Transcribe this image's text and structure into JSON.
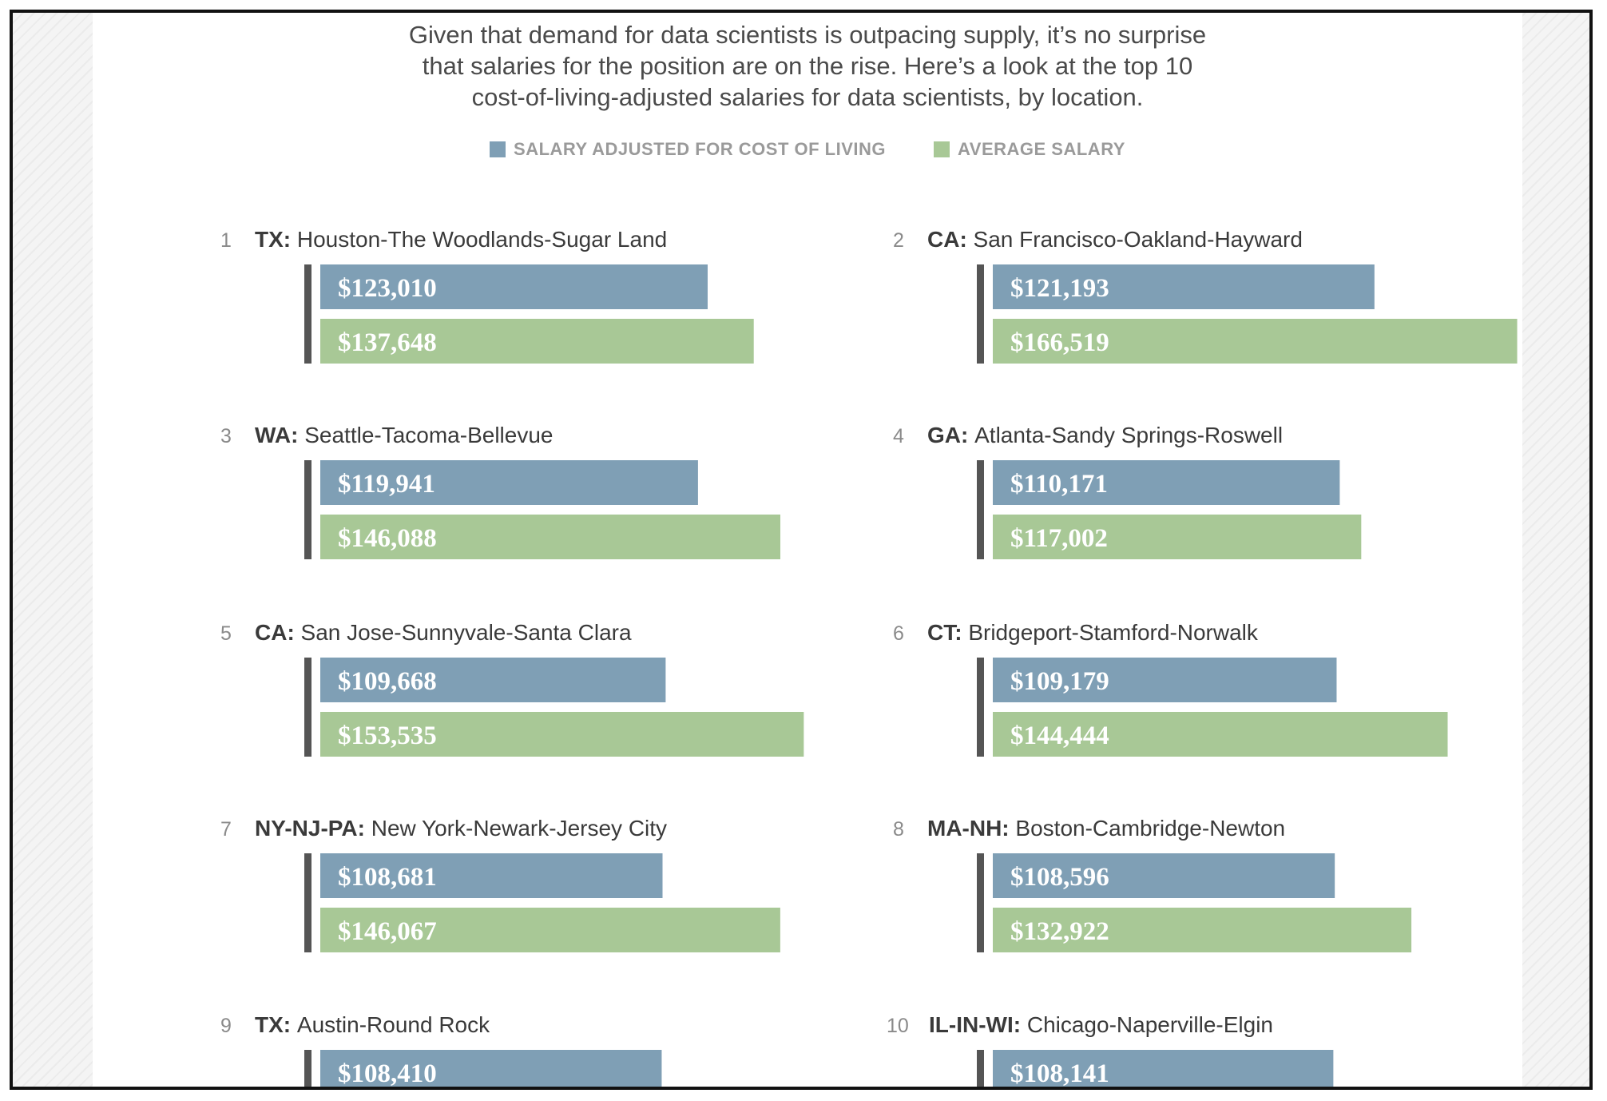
{
  "intro": {
    "line1": "Given that demand for data scientists is outpacing supply, it’s no surprise",
    "line2": "that salaries for the position are on the rise. Here’s a look at the top 10",
    "line3": "cost-of-living-adjusted salaries for data scientists, by location."
  },
  "colors": {
    "adjusted": "#7f9fb5",
    "average": "#a8c896",
    "accent": "#555555"
  },
  "chart_data": {
    "type": "bar",
    "orientation": "horizontal",
    "legend": {
      "adjusted": "SALARY ADJUSTED FOR COST OF LIVING",
      "average": "AVERAGE SALARY",
      "position": "top-center"
    },
    "series": [
      {
        "name": "SALARY ADJUSTED FOR COST OF LIVING",
        "key": "adjusted"
      },
      {
        "name": "AVERAGE SALARY",
        "key": "average"
      }
    ],
    "xlim": [
      0,
      200000
    ],
    "locations": [
      {
        "rank": "1",
        "state": "TX:",
        "metro": "Houston-The Woodlands-Sugar Land",
        "adjusted": 123010,
        "adjusted_label": "$123,010",
        "average": 137648,
        "average_label": "$137,648"
      },
      {
        "rank": "2",
        "state": "CA:",
        "metro": "San Francisco-Oakland-Hayward",
        "adjusted": 121193,
        "adjusted_label": "$121,193",
        "average": 166519,
        "average_label": "$166,519"
      },
      {
        "rank": "3",
        "state": "WA:",
        "metro": "Seattle-Tacoma-Bellevue",
        "adjusted": 119941,
        "adjusted_label": "$119,941",
        "average": 146088,
        "average_label": "$146,088"
      },
      {
        "rank": "4",
        "state": "GA:",
        "metro": "Atlanta-Sandy Springs-Roswell",
        "adjusted": 110171,
        "adjusted_label": "$110,171",
        "average": 117002,
        "average_label": "$117,002"
      },
      {
        "rank": "5",
        "state": "CA:",
        "metro": "San Jose-Sunnyvale-Santa Clara",
        "adjusted": 109668,
        "adjusted_label": "$109,668",
        "average": 153535,
        "average_label": "$153,535"
      },
      {
        "rank": "6",
        "state": "CT:",
        "metro": "Bridgeport-Stamford-Norwalk",
        "adjusted": 109179,
        "adjusted_label": "$109,179",
        "average": 144444,
        "average_label": "$144,444"
      },
      {
        "rank": "7",
        "state": "NY-NJ-PA:",
        "metro": "New York-Newark-Jersey City",
        "adjusted": 108681,
        "adjusted_label": "$108,681",
        "average": 146067,
        "average_label": "$146,067"
      },
      {
        "rank": "8",
        "state": "MA-NH:",
        "metro": "Boston-Cambridge-Newton",
        "adjusted": 108596,
        "adjusted_label": "$108,596",
        "average": 132922,
        "average_label": "$132,922"
      },
      {
        "rank": "9",
        "state": "TX:",
        "metro": "Austin-Round Rock",
        "adjusted": 108410,
        "adjusted_label": "$108,410",
        "average": null,
        "average_label": null
      },
      {
        "rank": "10",
        "state": "IL-IN-WI:",
        "metro": "Chicago-Naperville-Elgin",
        "adjusted": 108141,
        "adjusted_label": "$108,141",
        "average": null,
        "average_label": null
      }
    ]
  }
}
